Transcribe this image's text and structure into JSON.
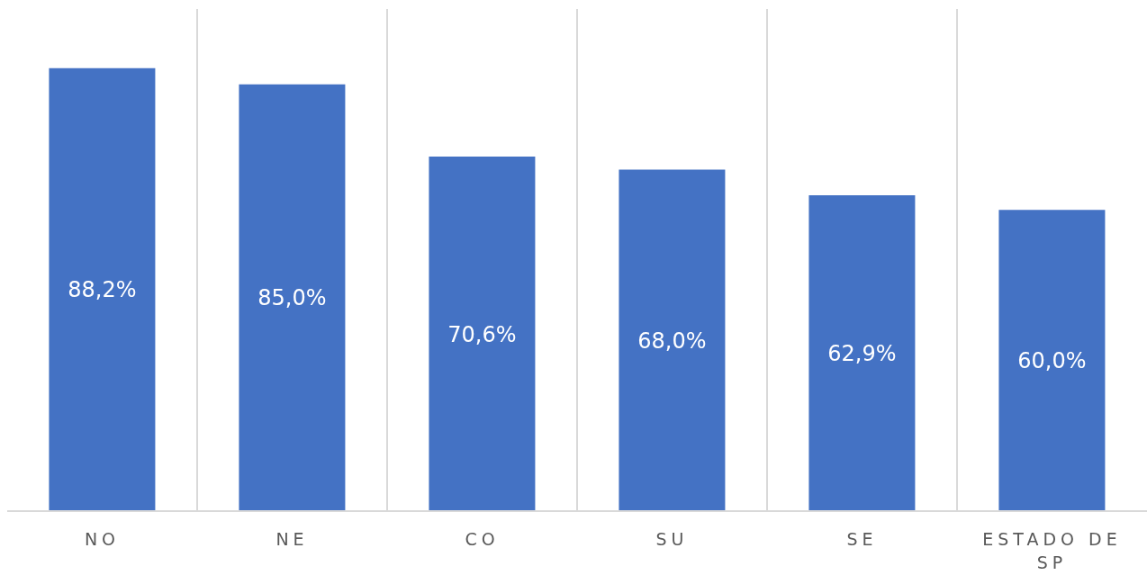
{
  "chart_data": {
    "type": "bar",
    "categories": [
      "NO",
      "NE",
      "CO",
      "SU",
      "SE",
      "ESTADO DE SP"
    ],
    "values": [
      88.2,
      85.0,
      70.6,
      68.0,
      62.9,
      60.0
    ],
    "value_labels": [
      "88,2%",
      "85,0%",
      "70,6%",
      "68,0%",
      "62,9%",
      "60,0%"
    ],
    "color": "#4472c4",
    "ylim": [
      0,
      100
    ],
    "tick_labels": "x",
    "grid": "x"
  }
}
